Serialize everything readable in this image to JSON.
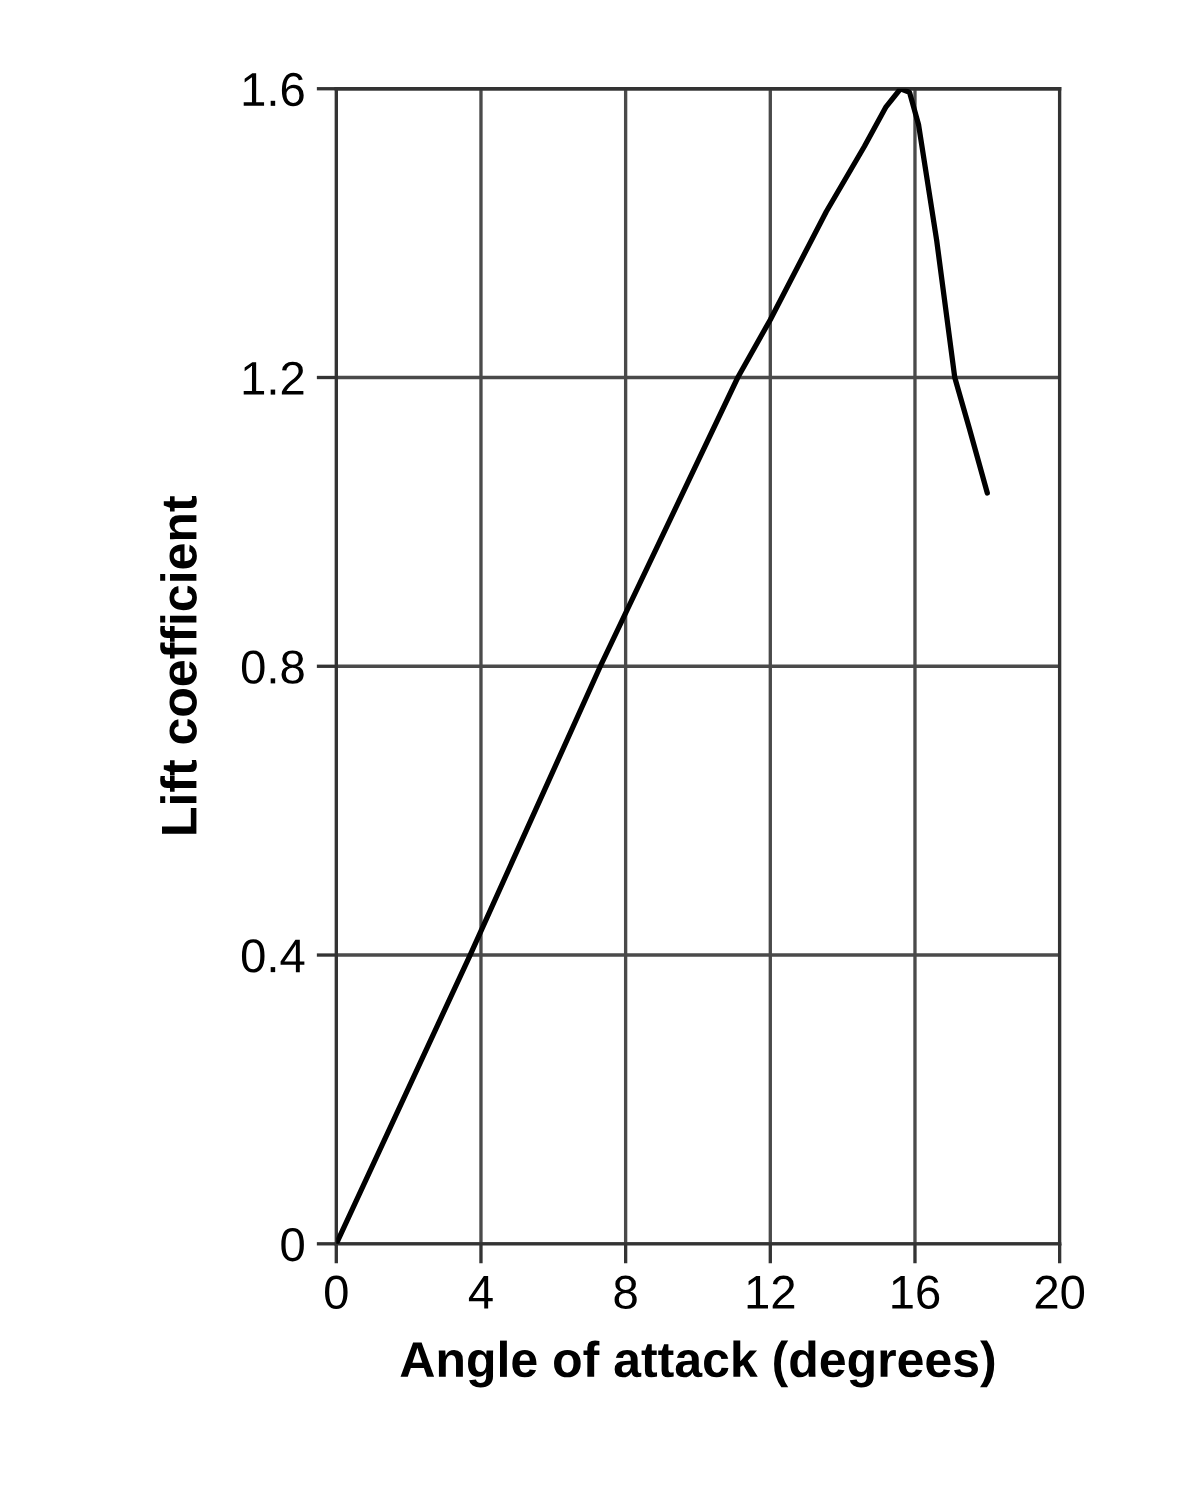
{
  "chart_data": {
    "type": "line",
    "xlabel": "Angle of attack (degrees)",
    "ylabel": "Lift coefficient",
    "x": [
      0,
      3.7,
      7.3,
      11.1,
      12,
      13.55,
      14.6,
      15.2,
      15.6,
      15.85,
      16.1,
      16.6,
      17.1,
      17.5,
      18.0
    ],
    "values": [
      0,
      0.4,
      0.8,
      1.2,
      1.28,
      1.43,
      1.52,
      1.575,
      1.6,
      1.595,
      1.55,
      1.39,
      1.2,
      1.13,
      1.04
    ],
    "color": "#000000",
    "xlim": [
      0,
      20
    ],
    "ylim": [
      0,
      1.6
    ],
    "xticks": [
      0,
      4,
      8,
      12,
      16,
      20
    ],
    "yticks": [
      0,
      0.4,
      0.8,
      1.2,
      1.6
    ],
    "grid": true
  }
}
